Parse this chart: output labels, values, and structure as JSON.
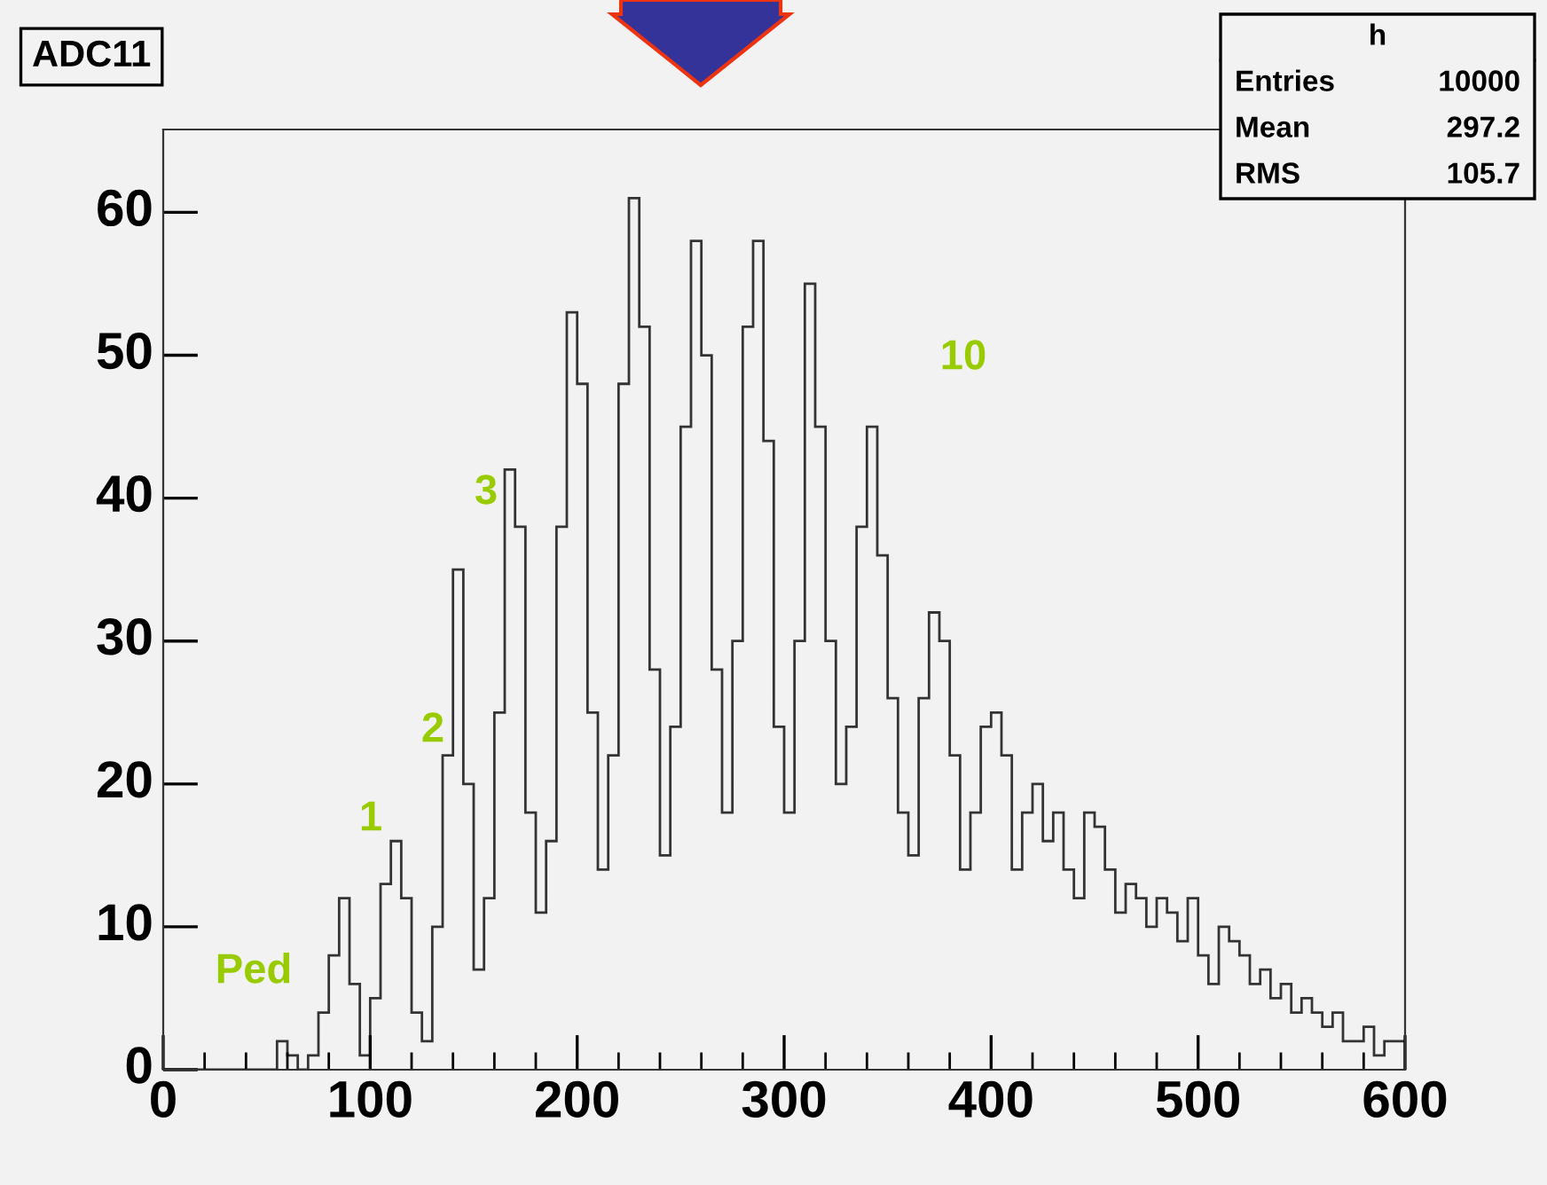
{
  "chart_data": {
    "type": "histogram",
    "title": "ADC11",
    "bins": [
      0,
      5,
      10,
      15,
      20,
      25,
      30,
      35,
      40,
      45,
      50,
      55,
      60,
      65,
      70,
      75,
      80,
      85,
      90,
      95,
      100,
      105,
      110,
      115,
      120,
      125,
      130,
      135,
      140,
      145,
      150,
      155,
      160,
      165,
      170,
      175,
      180,
      185,
      190,
      195,
      200,
      205,
      210,
      215,
      220,
      225,
      230,
      235,
      240,
      245,
      250,
      255,
      260,
      265,
      270,
      275,
      280,
      285,
      290,
      295,
      300,
      305,
      310,
      315,
      320,
      325,
      330,
      335,
      340,
      345,
      350,
      355,
      360,
      365,
      370,
      375,
      380,
      385,
      390,
      395,
      400,
      405,
      410,
      415,
      420,
      425,
      430,
      435,
      440,
      445,
      450,
      455,
      460,
      465,
      470,
      475,
      480,
      485,
      490,
      495,
      500,
      505,
      510,
      515,
      520,
      525,
      530,
      535,
      540,
      545,
      550,
      555,
      560,
      565,
      570,
      575,
      580,
      585,
      590,
      595,
      600
    ],
    "values": [
      0,
      0,
      0,
      0,
      0,
      0,
      0,
      0,
      0,
      0,
      0,
      2,
      1,
      0,
      1,
      4,
      8,
      12,
      6,
      1,
      5,
      13,
      16,
      12,
      4,
      2,
      10,
      22,
      35,
      20,
      7,
      12,
      25,
      42,
      38,
      18,
      11,
      16,
      38,
      53,
      48,
      25,
      14,
      22,
      48,
      61,
      52,
      28,
      15,
      24,
      45,
      58,
      50,
      28,
      18,
      30,
      52,
      58,
      44,
      24,
      18,
      30,
      55,
      45,
      30,
      20,
      24,
      38,
      45,
      36,
      26,
      18,
      15,
      26,
      32,
      30,
      22,
      14,
      18,
      24,
      25,
      22,
      14,
      18,
      20,
      16,
      18,
      14,
      12,
      18,
      17,
      14,
      11,
      13,
      12,
      10,
      12,
      11,
      9,
      12,
      8,
      6,
      10,
      9,
      8,
      6,
      7,
      5,
      6,
      4,
      5,
      4,
      3,
      4,
      2,
      2,
      3,
      1,
      2,
      2
    ],
    "color": "#333333",
    "xlim": [
      0,
      600
    ],
    "ylim": [
      0,
      65.8
    ],
    "xticks": [
      0,
      100,
      200,
      300,
      400,
      500,
      600
    ],
    "yticks": [
      0,
      10,
      20,
      30,
      40,
      50,
      60
    ],
    "grid": false,
    "annotations": [
      "h",
      "Entries",
      "10000",
      "Mean",
      "297.2",
      "RMS",
      "105.7",
      "Ped",
      "1",
      "2",
      "3",
      "10"
    ]
  }
}
